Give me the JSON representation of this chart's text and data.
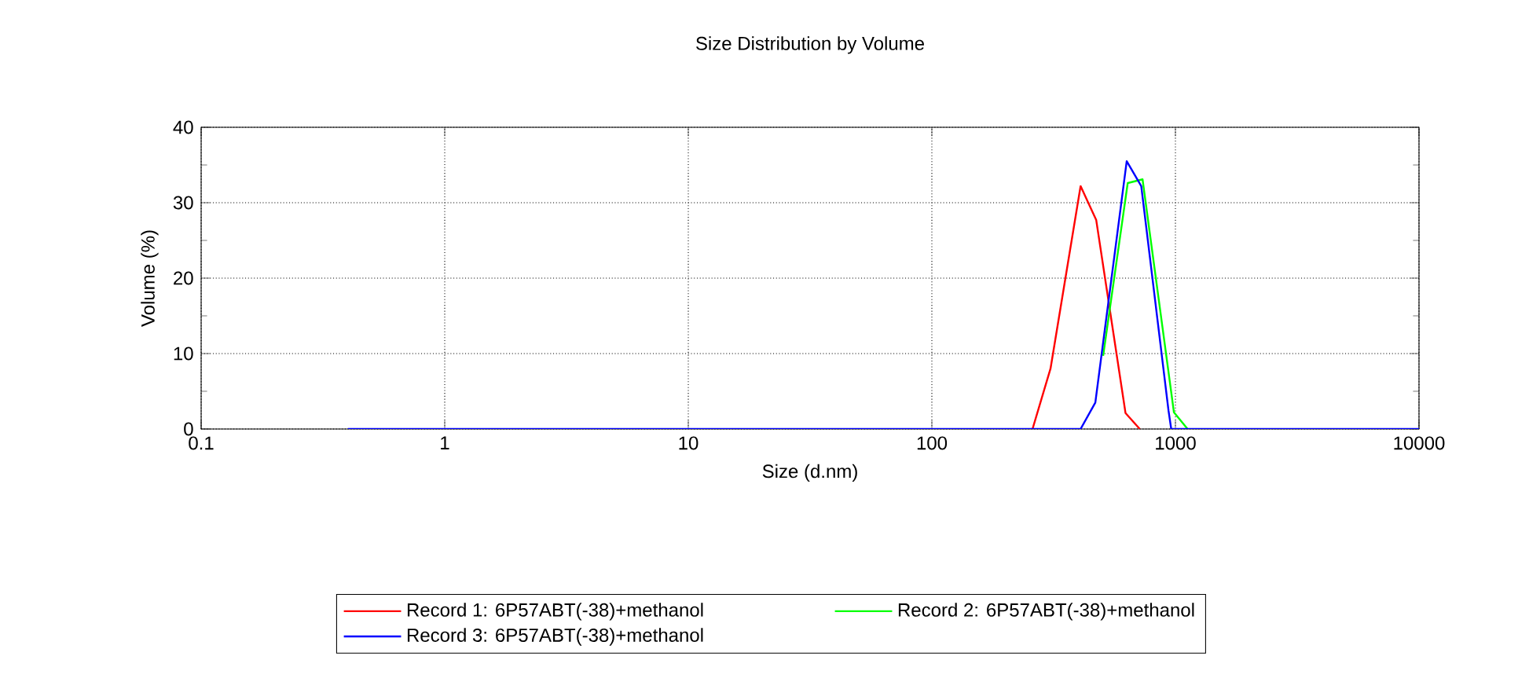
{
  "chart_data": {
    "type": "line",
    "title": "Size Distribution by Volume",
    "xlabel": "Size (d.nm)",
    "ylabel": "Volume (%)",
    "log": "x",
    "grid": true,
    "legend": "bottom",
    "xlim": [
      0.1,
      10000
    ],
    "xticks": [
      0.1,
      1,
      10,
      100,
      1000,
      10000
    ],
    "ylim": [
      0,
      40
    ],
    "yticks": [
      0,
      10,
      20,
      30,
      40
    ],
    "series": [
      {
        "name": "Record 1: 6P57ABT(-38)+methanol",
        "color": "#ff0000",
        "x": [
          259,
          307,
          408,
          473,
          624,
          714
        ],
        "values": [
          0,
          8,
          32.2,
          27.7,
          2.1,
          0
        ]
      },
      {
        "name": "Record 2: 6P57ABT(-38)+methanol",
        "color": "#00ff00",
        "x": [
          505,
          637,
          733,
          986,
          1122
        ],
        "values": [
          9.7,
          32.6,
          33.1,
          2.2,
          0
        ]
      },
      {
        "name": "Record 3: 6P57ABT(-38)+methanol",
        "color": "#0000ff",
        "x": [
          0.4,
          408,
          469,
          631,
          724,
          937,
          961,
          10000
        ],
        "values": [
          0,
          0,
          3.5,
          35.5,
          32.2,
          2.4,
          0,
          0
        ]
      }
    ]
  }
}
